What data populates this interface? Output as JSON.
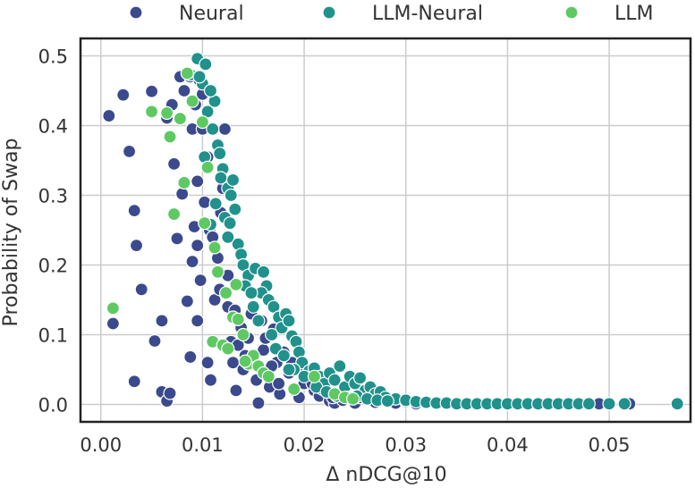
{
  "chart_data": {
    "type": "scatter",
    "xlabel": "Δ nDCG@10",
    "ylabel": "Probability of Swap",
    "xlim": [
      -0.002,
      0.058
    ],
    "ylim": [
      -0.025,
      0.525
    ],
    "x_ticks": [
      "0.00",
      "0.01",
      "0.02",
      "0.03",
      "0.04",
      "0.05"
    ],
    "y_ticks": [
      "0.0",
      "0.1",
      "0.2",
      "0.3",
      "0.4",
      "0.5"
    ],
    "grid": true,
    "legend_position": "top",
    "series": [
      {
        "name": "Neural",
        "color": "#3b4a8c",
        "points": [
          [
            0.0008,
            0.414
          ],
          [
            0.0022,
            0.444
          ],
          [
            0.0028,
            0.363
          ],
          [
            0.0033,
            0.278
          ],
          [
            0.0035,
            0.228
          ],
          [
            0.004,
            0.165
          ],
          [
            0.0012,
            0.116
          ],
          [
            0.005,
            0.449
          ],
          [
            0.0053,
            0.091
          ],
          [
            0.0033,
            0.033
          ],
          [
            0.006,
            0.12
          ],
          [
            0.006,
            0.018
          ],
          [
            0.0065,
            0.005
          ],
          [
            0.0068,
            0.016
          ],
          [
            0.0065,
            0.411
          ],
          [
            0.007,
            0.43
          ],
          [
            0.0072,
            0.345
          ],
          [
            0.0075,
            0.238
          ],
          [
            0.0078,
            0.47
          ],
          [
            0.008,
            0.302
          ],
          [
            0.0082,
            0.45
          ],
          [
            0.0085,
            0.148
          ],
          [
            0.0088,
            0.068
          ],
          [
            0.009,
            0.205
          ],
          [
            0.009,
            0.395
          ],
          [
            0.0092,
            0.255
          ],
          [
            0.0095,
            0.32
          ],
          [
            0.0095,
            0.228
          ],
          [
            0.0098,
            0.178
          ],
          [
            0.01,
            0.395
          ],
          [
            0.0102,
            0.29
          ],
          [
            0.0105,
            0.355
          ],
          [
            0.0107,
            0.25
          ],
          [
            0.011,
            0.24
          ],
          [
            0.0112,
            0.15
          ],
          [
            0.0115,
            0.21
          ],
          [
            0.0117,
            0.165
          ],
          [
            0.012,
            0.31
          ],
          [
            0.0122,
            0.395
          ],
          [
            0.0125,
            0.14
          ],
          [
            0.0128,
            0.09
          ],
          [
            0.013,
            0.06
          ],
          [
            0.0133,
            0.02
          ],
          [
            0.0135,
            0.085
          ],
          [
            0.0138,
            0.11
          ],
          [
            0.014,
            0.05
          ],
          [
            0.0145,
            0.095
          ],
          [
            0.0148,
            0.13
          ],
          [
            0.015,
            0.065
          ],
          [
            0.0153,
            0.035
          ],
          [
            0.0155,
            0.002
          ],
          [
            0.0158,
            0.12
          ],
          [
            0.016,
            0.078
          ],
          [
            0.0163,
            0.042
          ],
          [
            0.0166,
            0.025
          ],
          [
            0.017,
            0.108
          ],
          [
            0.0173,
            0.06
          ],
          [
            0.0176,
            0.015
          ],
          [
            0.018,
            0.075
          ],
          [
            0.0185,
            0.045
          ],
          [
            0.019,
            0.02
          ],
          [
            0.0195,
            0.01
          ],
          [
            0.02,
            0.03
          ],
          [
            0.0205,
            0.045
          ],
          [
            0.021,
            0.02
          ],
          [
            0.0215,
            0.012
          ],
          [
            0.022,
            0.035
          ],
          [
            0.0225,
            0.005
          ],
          [
            0.023,
            0.002
          ],
          [
            0.0235,
            0.015
          ],
          [
            0.024,
            0.025
          ],
          [
            0.0245,
            0.008
          ],
          [
            0.025,
            0.002
          ],
          [
            0.026,
            0.012
          ],
          [
            0.027,
            0.003
          ],
          [
            0.028,
            0.006
          ],
          [
            0.029,
            0.002
          ],
          [
            0.03,
            0.004
          ],
          [
            0.031,
            0.001
          ],
          [
            0.032,
            0.002
          ],
          [
            0.033,
            0.001
          ],
          [
            0.034,
            0.002
          ],
          [
            0.035,
            0.001
          ],
          [
            0.036,
            0.001
          ],
          [
            0.037,
            0.001
          ],
          [
            0.038,
            0.001
          ],
          [
            0.039,
            0.001
          ],
          [
            0.04,
            0.001
          ],
          [
            0.041,
            0.001
          ],
          [
            0.042,
            0.001
          ],
          [
            0.043,
            0.001
          ],
          [
            0.044,
            0.001
          ],
          [
            0.045,
            0.001
          ],
          [
            0.046,
            0.001
          ],
          [
            0.047,
            0.001
          ],
          [
            0.048,
            0.001
          ],
          [
            0.049,
            0.001
          ],
          [
            0.05,
            0.001
          ],
          [
            0.052,
            0.001
          ],
          [
            0.0105,
            0.06
          ],
          [
            0.0095,
            0.12
          ],
          [
            0.0108,
            0.035
          ],
          [
            0.01,
            0.445
          ],
          [
            0.0088,
            0.47
          ],
          [
            0.0097,
            0.465
          ],
          [
            0.0093,
            0.43
          ],
          [
            0.0118,
            0.275
          ],
          [
            0.0125,
            0.185
          ],
          [
            0.0132,
            0.135
          ],
          [
            0.0142,
            0.07
          ],
          [
            0.0162,
            0.095
          ],
          [
            0.0168,
            0.055
          ],
          [
            0.0175,
            0.03
          ],
          [
            0.0188,
            0.06
          ],
          [
            0.0198,
            0.05
          ],
          [
            0.0208,
            0.03
          ],
          [
            0.0218,
            0.022
          ],
          [
            0.0228,
            0.01
          ],
          [
            0.0238,
            0.006
          ],
          [
            0.0255,
            0.01
          ]
        ]
      },
      {
        "name": "LLM-Neural",
        "color": "#21918c",
        "points": [
          [
            0.0095,
            0.496
          ],
          [
            0.0103,
            0.488
          ],
          [
            0.0088,
            0.473
          ],
          [
            0.01,
            0.46
          ],
          [
            0.0112,
            0.435
          ],
          [
            0.0105,
            0.42
          ],
          [
            0.011,
            0.395
          ],
          [
            0.0115,
            0.372
          ],
          [
            0.0102,
            0.355
          ],
          [
            0.012,
            0.338
          ],
          [
            0.0118,
            0.325
          ],
          [
            0.0125,
            0.31
          ],
          [
            0.013,
            0.322
          ],
          [
            0.0128,
            0.3
          ],
          [
            0.0132,
            0.28
          ],
          [
            0.0113,
            0.288
          ],
          [
            0.0122,
            0.268
          ],
          [
            0.0108,
            0.258
          ],
          [
            0.0135,
            0.23
          ],
          [
            0.0138,
            0.215
          ],
          [
            0.0125,
            0.24
          ],
          [
            0.014,
            0.2
          ],
          [
            0.0145,
            0.185
          ],
          [
            0.0152,
            0.195
          ],
          [
            0.016,
            0.19
          ],
          [
            0.0163,
            0.17
          ],
          [
            0.0158,
            0.16
          ],
          [
            0.0165,
            0.15
          ],
          [
            0.017,
            0.14
          ],
          [
            0.0175,
            0.125
          ],
          [
            0.0178,
            0.11
          ],
          [
            0.0182,
            0.13
          ],
          [
            0.0185,
            0.12
          ],
          [
            0.0188,
            0.098
          ],
          [
            0.0192,
            0.09
          ],
          [
            0.0195,
            0.075
          ],
          [
            0.0198,
            0.06
          ],
          [
            0.0205,
            0.048
          ],
          [
            0.021,
            0.052
          ],
          [
            0.0215,
            0.04
          ],
          [
            0.022,
            0.03
          ],
          [
            0.0225,
            0.045
          ],
          [
            0.023,
            0.035
          ],
          [
            0.0235,
            0.055
          ],
          [
            0.024,
            0.025
          ],
          [
            0.0245,
            0.04
          ],
          [
            0.025,
            0.03
          ],
          [
            0.0255,
            0.038
          ],
          [
            0.026,
            0.02
          ],
          [
            0.0265,
            0.025
          ],
          [
            0.027,
            0.015
          ],
          [
            0.0275,
            0.018
          ],
          [
            0.028,
            0.01
          ],
          [
            0.029,
            0.008
          ],
          [
            0.03,
            0.006
          ],
          [
            0.031,
            0.004
          ],
          [
            0.032,
            0.003
          ],
          [
            0.033,
            0.002
          ],
          [
            0.034,
            0.002
          ],
          [
            0.035,
            0.001
          ],
          [
            0.036,
            0.001
          ],
          [
            0.037,
            0.001
          ],
          [
            0.038,
            0.001
          ],
          [
            0.039,
            0.001
          ],
          [
            0.04,
            0.001
          ],
          [
            0.041,
            0.001
          ],
          [
            0.042,
            0.001
          ],
          [
            0.043,
            0.001
          ],
          [
            0.044,
            0.001
          ],
          [
            0.045,
            0.001
          ],
          [
            0.046,
            0.001
          ],
          [
            0.047,
            0.001
          ],
          [
            0.048,
            0.001
          ],
          [
            0.05,
            0.001
          ],
          [
            0.0515,
            0.001
          ],
          [
            0.0567,
            0.001
          ],
          [
            0.0097,
            0.47
          ],
          [
            0.0108,
            0.45
          ],
          [
            0.0117,
            0.36
          ],
          [
            0.0127,
            0.26
          ],
          [
            0.0142,
            0.17
          ],
          [
            0.0155,
            0.12
          ],
          [
            0.0168,
            0.1
          ],
          [
            0.0172,
            0.08
          ],
          [
            0.018,
            0.07
          ],
          [
            0.019,
            0.05
          ],
          [
            0.02,
            0.04
          ],
          [
            0.0212,
            0.025
          ],
          [
            0.0222,
            0.018
          ],
          [
            0.0232,
            0.012
          ],
          [
            0.0242,
            0.01
          ],
          [
            0.0252,
            0.012
          ],
          [
            0.0262,
            0.008
          ],
          [
            0.0272,
            0.006
          ],
          [
            0.0282,
            0.005
          ],
          [
            0.015,
            0.14
          ],
          [
            0.0148,
            0.16
          ],
          [
            0.0185,
            0.05
          ]
        ]
      },
      {
        "name": "LLM",
        "color": "#5ec962",
        "points": [
          [
            0.0012,
            0.138
          ],
          [
            0.005,
            0.42
          ],
          [
            0.0065,
            0.418
          ],
          [
            0.0068,
            0.384
          ],
          [
            0.0072,
            0.273
          ],
          [
            0.0078,
            0.41
          ],
          [
            0.0082,
            0.318
          ],
          [
            0.0085,
            0.475
          ],
          [
            0.009,
            0.435
          ],
          [
            0.01,
            0.405
          ],
          [
            0.0105,
            0.34
          ],
          [
            0.011,
            0.09
          ],
          [
            0.0112,
            0.225
          ],
          [
            0.0115,
            0.19
          ],
          [
            0.012,
            0.085
          ],
          [
            0.0123,
            0.16
          ],
          [
            0.0125,
            0.08
          ],
          [
            0.013,
            0.125
          ],
          [
            0.0135,
            0.122
          ],
          [
            0.014,
            0.1
          ],
          [
            0.0145,
            0.058
          ],
          [
            0.015,
            0.07
          ],
          [
            0.0155,
            0.055
          ],
          [
            0.016,
            0.045
          ],
          [
            0.0165,
            0.04
          ],
          [
            0.019,
            0.022
          ],
          [
            0.021,
            0.04
          ],
          [
            0.023,
            0.015
          ],
          [
            0.024,
            0.01
          ],
          [
            0.0248,
            0.008
          ],
          [
            0.0133,
            0.172
          ],
          [
            0.0102,
            0.26
          ],
          [
            0.0142,
            0.062
          ]
        ]
      }
    ]
  }
}
